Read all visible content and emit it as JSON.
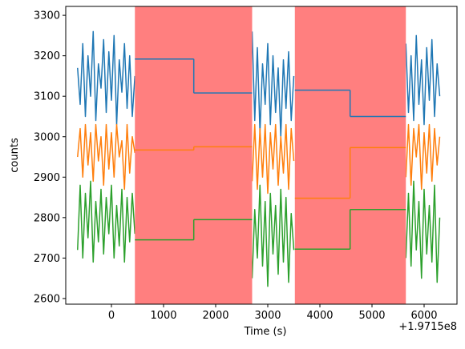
{
  "chart_data": {
    "type": "line",
    "xlabel": "Time (s)",
    "ylabel": "counts",
    "offset_text": "+1.9715e8",
    "xlim": [
      -877,
      6631
    ],
    "ylim": [
      2586,
      3322
    ],
    "xticks": [
      0,
      1000,
      2000,
      3000,
      4000,
      5000,
      6000
    ],
    "yticks": [
      2600,
      2700,
      2800,
      2900,
      3000,
      3100,
      3200,
      3300
    ],
    "x": [
      -650,
      -600,
      -550,
      -500,
      -450,
      -400,
      -350,
      -300,
      -250,
      -200,
      -150,
      -100,
      -50,
      0,
      50,
      100,
      150,
      200,
      250,
      300,
      350,
      400,
      450,
      1500,
      2700,
      2750,
      2800,
      2850,
      2900,
      2950,
      3000,
      3050,
      3100,
      3150,
      3200,
      3250,
      3300,
      3350,
      3400,
      3450,
      3500,
      4500,
      5650,
      5700,
      5750,
      5800,
      5850,
      5900,
      5950,
      6000,
      6050,
      6100,
      6150,
      6200,
      6250,
      6300
    ],
    "series": [
      {
        "color": "#1f77b4",
        "values": [
          3170,
          3080,
          3230,
          3050,
          3200,
          3100,
          3260,
          3040,
          3180,
          3120,
          3240,
          3060,
          3210,
          3090,
          3250,
          3030,
          3190,
          3110,
          3230,
          3070,
          3200,
          3050,
          3150,
          null,
          3260,
          3040,
          3220,
          3010,
          3180,
          3080,
          3230,
          3030,
          3200,
          3060,
          3170,
          3000,
          3190,
          3070,
          3210,
          3040,
          3150,
          null,
          3230,
          3060,
          3200,
          3040,
          3250,
          3080,
          3190,
          3030,
          3220,
          3090,
          3240,
          3050,
          3180,
          3100
        ]
      },
      {
        "color": "#ff7f0e",
        "values": [
          2950,
          3020,
          2900,
          3030,
          2930,
          3010,
          2890,
          3030,
          2940,
          3000,
          2880,
          3030,
          2920,
          3010,
          2900,
          3030,
          2950,
          2990,
          2870,
          3030,
          2910,
          3000,
          2960,
          null,
          2890,
          3030,
          2870,
          3020,
          2900,
          3030,
          2860,
          3010,
          2920,
          3030,
          2880,
          3000,
          2910,
          3030,
          2870,
          3020,
          2940,
          null,
          2900,
          3030,
          2880,
          3020,
          2950,
          3030,
          2870,
          3010,
          2910,
          3030,
          2890,
          3020,
          2930,
          3000
        ]
      },
      {
        "color": "#2ca02c",
        "values": [
          2720,
          2880,
          2700,
          2860,
          2750,
          2890,
          2690,
          2840,
          2740,
          2870,
          2710,
          2850,
          2760,
          2880,
          2700,
          2830,
          2730,
          2870,
          2690,
          2850,
          2740,
          2860,
          2760,
          null,
          2650,
          2820,
          2700,
          2880,
          2680,
          2840,
          2630,
          2860,
          2710,
          2830,
          2660,
          2870,
          2690,
          2850,
          2640,
          2810,
          2720,
          null,
          2700,
          2860,
          2680,
          2890,
          2720,
          2840,
          2650,
          2870,
          2710,
          2830,
          2690,
          2880,
          2640,
          2800
        ]
      }
    ],
    "spans": [
      {
        "x": [
          450,
          2700
        ],
        "color": "#ff7f7f"
      },
      {
        "x": [
          3520,
          5650
        ],
        "color": "#ff7f7f"
      }
    ],
    "steps": [
      {
        "color": "#1f77b4",
        "bins": [
          450,
          1580,
          2700
        ],
        "values": [
          3192,
          3108
        ]
      },
      {
        "color": "#1f77b4",
        "bins": [
          3520,
          4580,
          5650
        ],
        "values": [
          3115,
          3050
        ]
      },
      {
        "color": "#ff7f0e",
        "bins": [
          450,
          1580,
          2700
        ],
        "values": [
          2967,
          2975
        ]
      },
      {
        "color": "#ff7f0e",
        "bins": [
          3520,
          4580,
          5650
        ],
        "values": [
          2848,
          2973
        ]
      },
      {
        "color": "#2ca02c",
        "bins": [
          450,
          1580,
          2700
        ],
        "values": [
          2745,
          2795
        ]
      },
      {
        "color": "#2ca02c",
        "bins": [
          3520,
          4580,
          5650
        ],
        "values": [
          2722,
          2820
        ]
      }
    ]
  }
}
